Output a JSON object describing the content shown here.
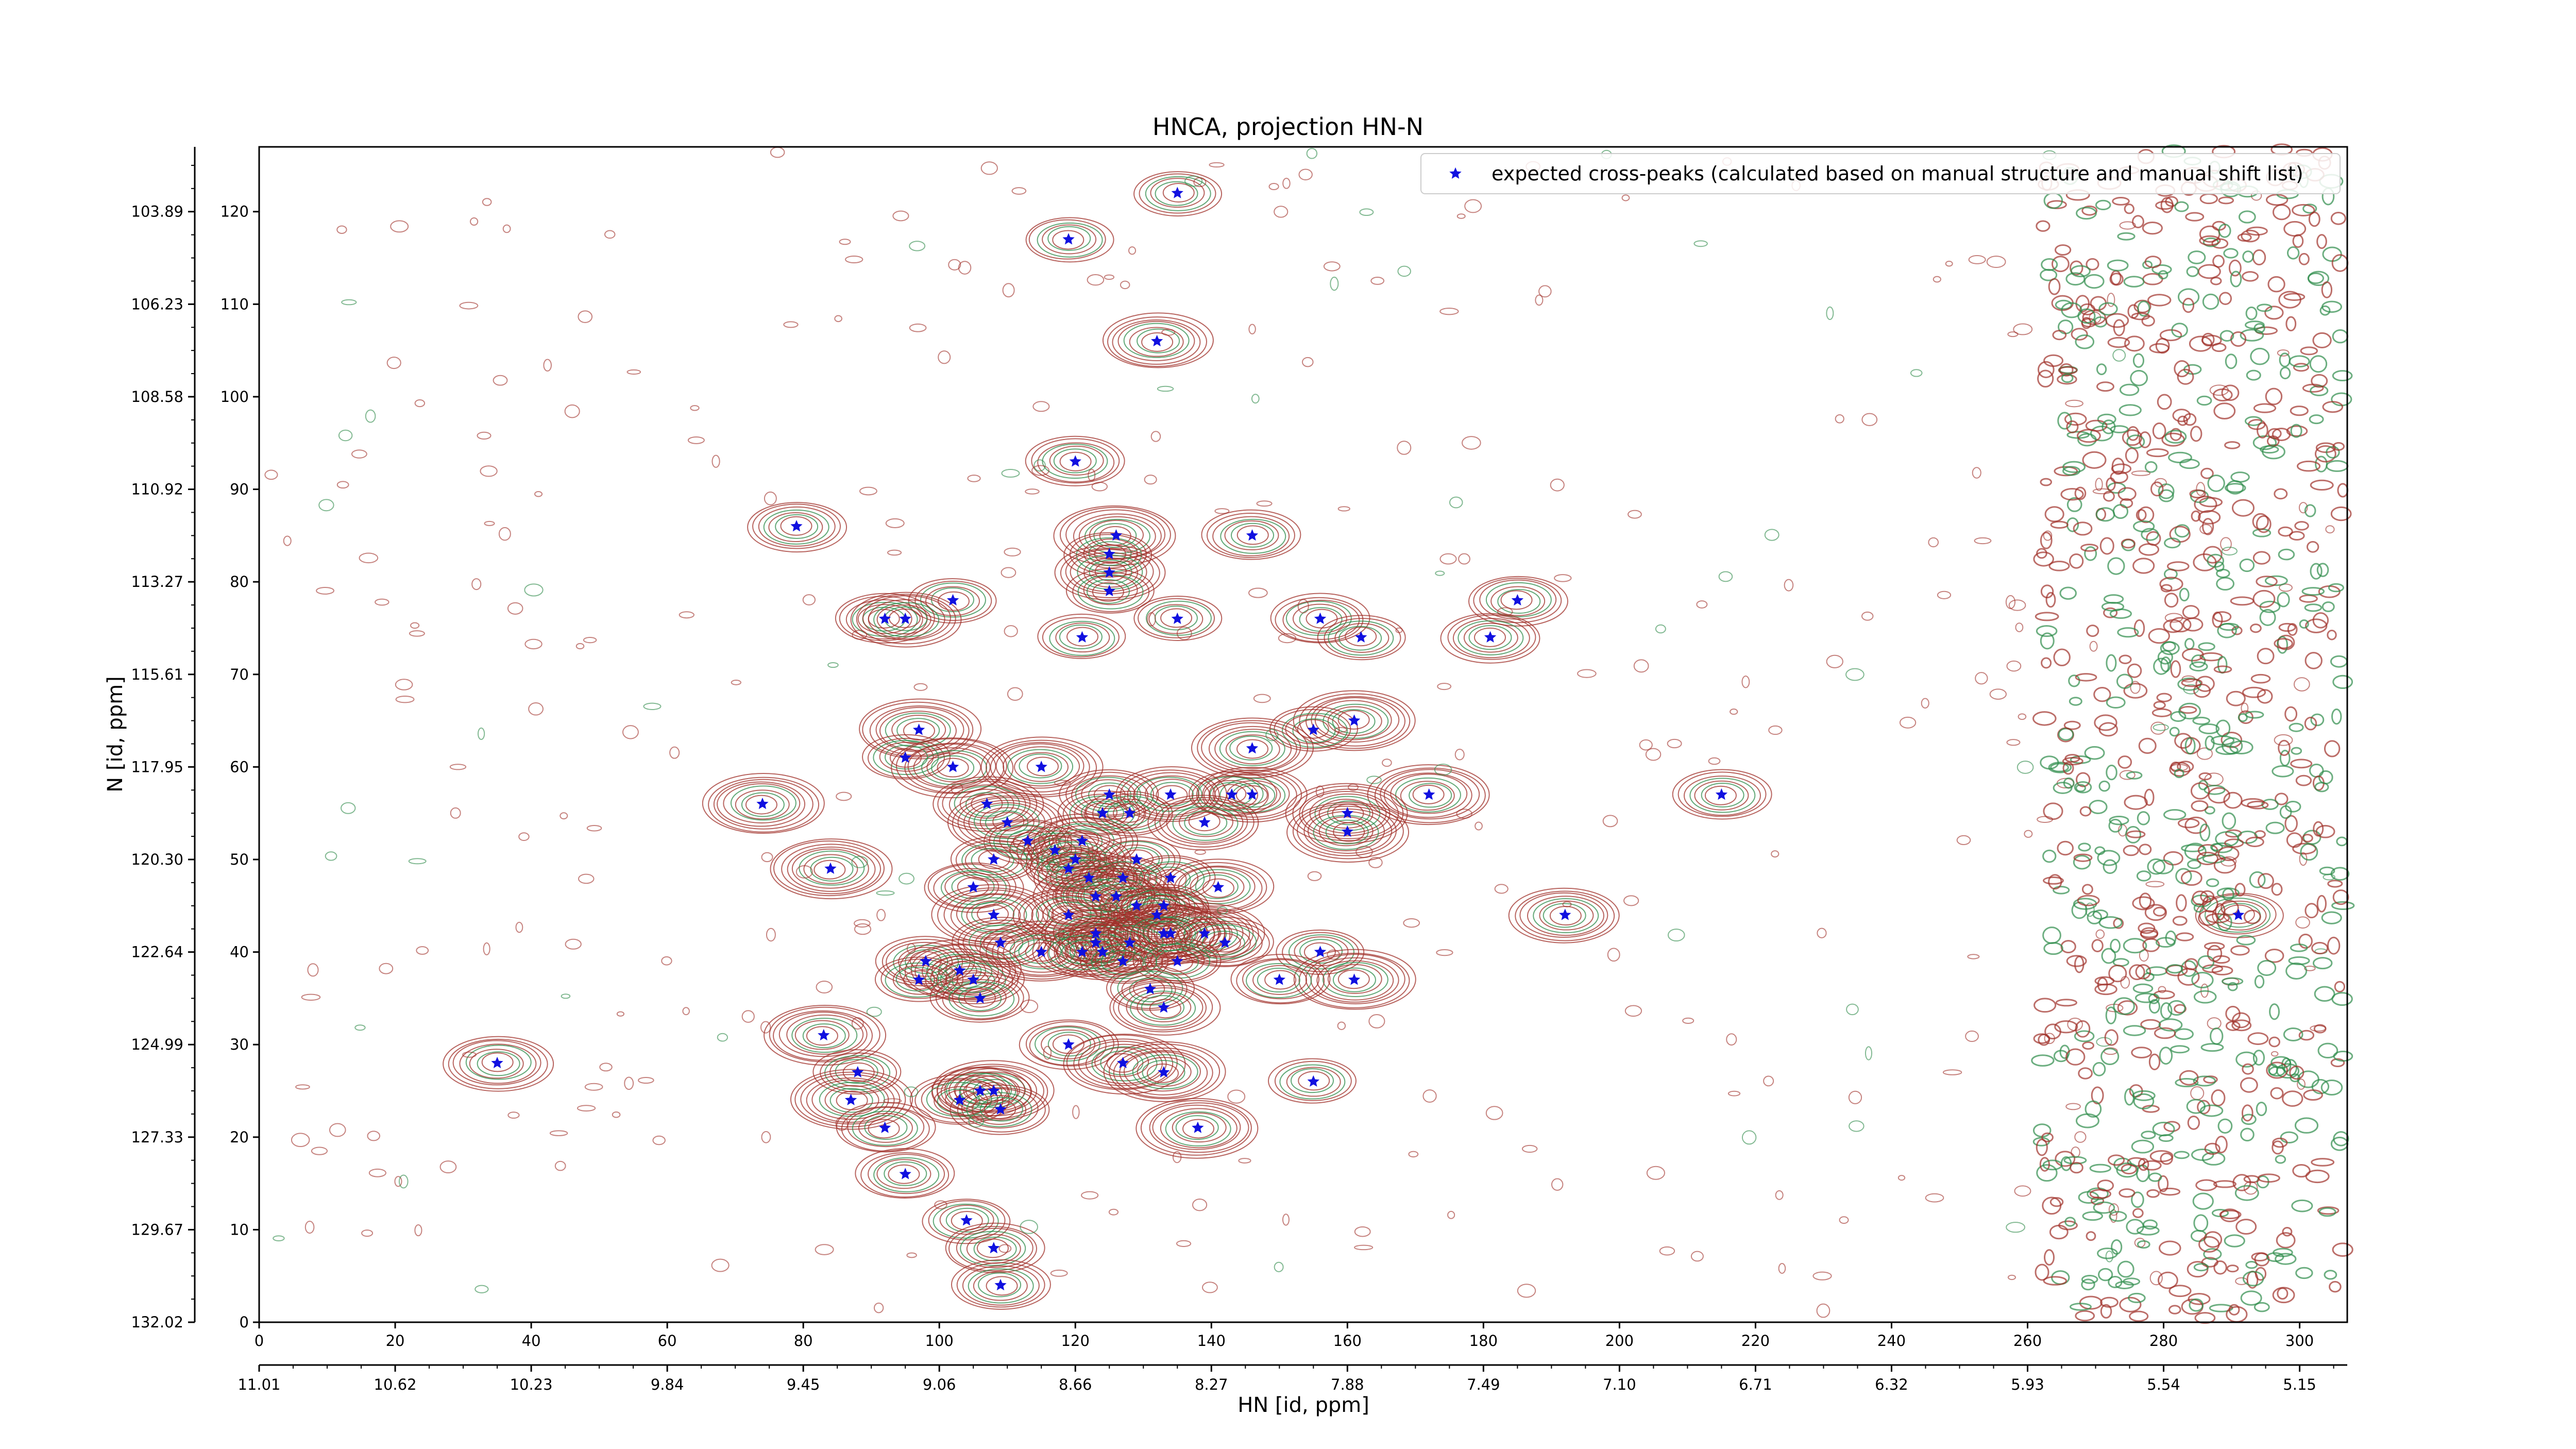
{
  "chart_data": {
    "type": "scatter",
    "title": "HNCA, projection HN-N",
    "xlabel": "HN [id, ppm]",
    "ylabel": "N [id, ppm]",
    "x_index_range": [
      0,
      307
    ],
    "y_index_range": [
      0,
      127
    ],
    "x_index_ticks": [
      0,
      20,
      40,
      60,
      80,
      100,
      120,
      140,
      160,
      180,
      200,
      220,
      240,
      260,
      280,
      300
    ],
    "y_index_ticks": [
      0,
      10,
      20,
      30,
      40,
      50,
      60,
      70,
      80,
      90,
      100,
      110,
      120
    ],
    "x_ppm_ticks": [
      "11.01",
      "10.62",
      "10.23",
      "9.84",
      "9.45",
      "9.06",
      "8.66",
      "8.27",
      "7.88",
      "7.49",
      "7.10",
      "6.71",
      "6.32",
      "5.93",
      "5.54",
      "5.15"
    ],
    "y_ppm_ticks": [
      "103.89",
      "106.23",
      "108.58",
      "110.92",
      "113.27",
      "115.61",
      "117.95",
      "120.30",
      "122.64",
      "124.99",
      "127.33",
      "129.67",
      "132.02"
    ],
    "contour_colors": {
      "positive": "#a0302a",
      "negative": "#2e8b4a"
    },
    "legend": {
      "position": "top-right"
    },
    "series": [
      {
        "name": "expected cross-peaks (calculated based on manual structure and manual shift list)",
        "color": "#1010e0",
        "marker": "star",
        "points": [
          [
            135,
            122
          ],
          [
            119,
            117
          ],
          [
            132,
            106
          ],
          [
            120,
            93
          ],
          [
            79,
            86
          ],
          [
            146,
            85
          ],
          [
            126,
            85
          ],
          [
            125,
            83
          ],
          [
            125,
            81
          ],
          [
            125,
            79
          ],
          [
            102,
            78
          ],
          [
            185,
            78
          ],
          [
            92,
            76
          ],
          [
            95,
            76
          ],
          [
            135,
            76
          ],
          [
            156,
            76
          ],
          [
            121,
            74
          ],
          [
            162,
            74
          ],
          [
            181,
            74
          ],
          [
            161,
            65
          ],
          [
            97,
            64
          ],
          [
            155,
            64
          ],
          [
            146,
            62
          ],
          [
            95,
            61
          ],
          [
            102,
            60
          ],
          [
            115,
            60
          ],
          [
            146,
            57
          ],
          [
            143,
            57
          ],
          [
            172,
            57
          ],
          [
            215,
            57
          ],
          [
            74,
            56
          ],
          [
            107,
            56
          ],
          [
            125,
            57
          ],
          [
            124,
            55
          ],
          [
            128,
            55
          ],
          [
            134,
            57
          ],
          [
            160,
            55
          ],
          [
            139,
            54
          ],
          [
            110,
            54
          ],
          [
            160,
            53
          ],
          [
            113,
            52
          ],
          [
            121,
            52
          ],
          [
            117,
            51
          ],
          [
            129,
            50
          ],
          [
            108,
            50
          ],
          [
            120,
            50
          ],
          [
            119,
            49
          ],
          [
            84,
            49
          ],
          [
            134,
            48
          ],
          [
            122,
            48
          ],
          [
            127,
            48
          ],
          [
            105,
            47
          ],
          [
            141,
            47
          ],
          [
            123,
            46
          ],
          [
            126,
            46
          ],
          [
            129,
            45
          ],
          [
            133,
            45
          ],
          [
            132,
            44
          ],
          [
            108,
            44
          ],
          [
            119,
            44
          ],
          [
            134,
            42
          ],
          [
            123,
            42
          ],
          [
            123,
            41
          ],
          [
            139,
            42
          ],
          [
            128,
            41
          ],
          [
            133,
            42
          ],
          [
            124,
            40
          ],
          [
            192,
            44
          ],
          [
            142,
            41
          ],
          [
            109,
            41
          ],
          [
            115,
            40
          ],
          [
            121,
            40
          ],
          [
            156,
            40
          ],
          [
            135,
            39
          ],
          [
            127,
            39
          ],
          [
            98,
            39
          ],
          [
            103,
            38
          ],
          [
            97,
            37
          ],
          [
            105,
            37
          ],
          [
            161,
            37
          ],
          [
            150,
            37
          ],
          [
            131,
            36
          ],
          [
            106,
            35
          ],
          [
            133,
            34
          ],
          [
            83,
            31
          ],
          [
            119,
            30
          ],
          [
            35,
            28
          ],
          [
            127,
            28
          ],
          [
            133,
            27
          ],
          [
            88,
            27
          ],
          [
            155,
            26
          ],
          [
            108,
            25
          ],
          [
            106,
            25
          ],
          [
            87,
            24
          ],
          [
            103,
            24
          ],
          [
            109,
            23
          ],
          [
            92,
            21
          ],
          [
            138,
            21
          ],
          [
            95,
            16
          ],
          [
            104,
            11
          ],
          [
            108,
            8
          ],
          [
            109,
            4
          ],
          [
            291,
            44
          ]
        ]
      }
    ]
  }
}
